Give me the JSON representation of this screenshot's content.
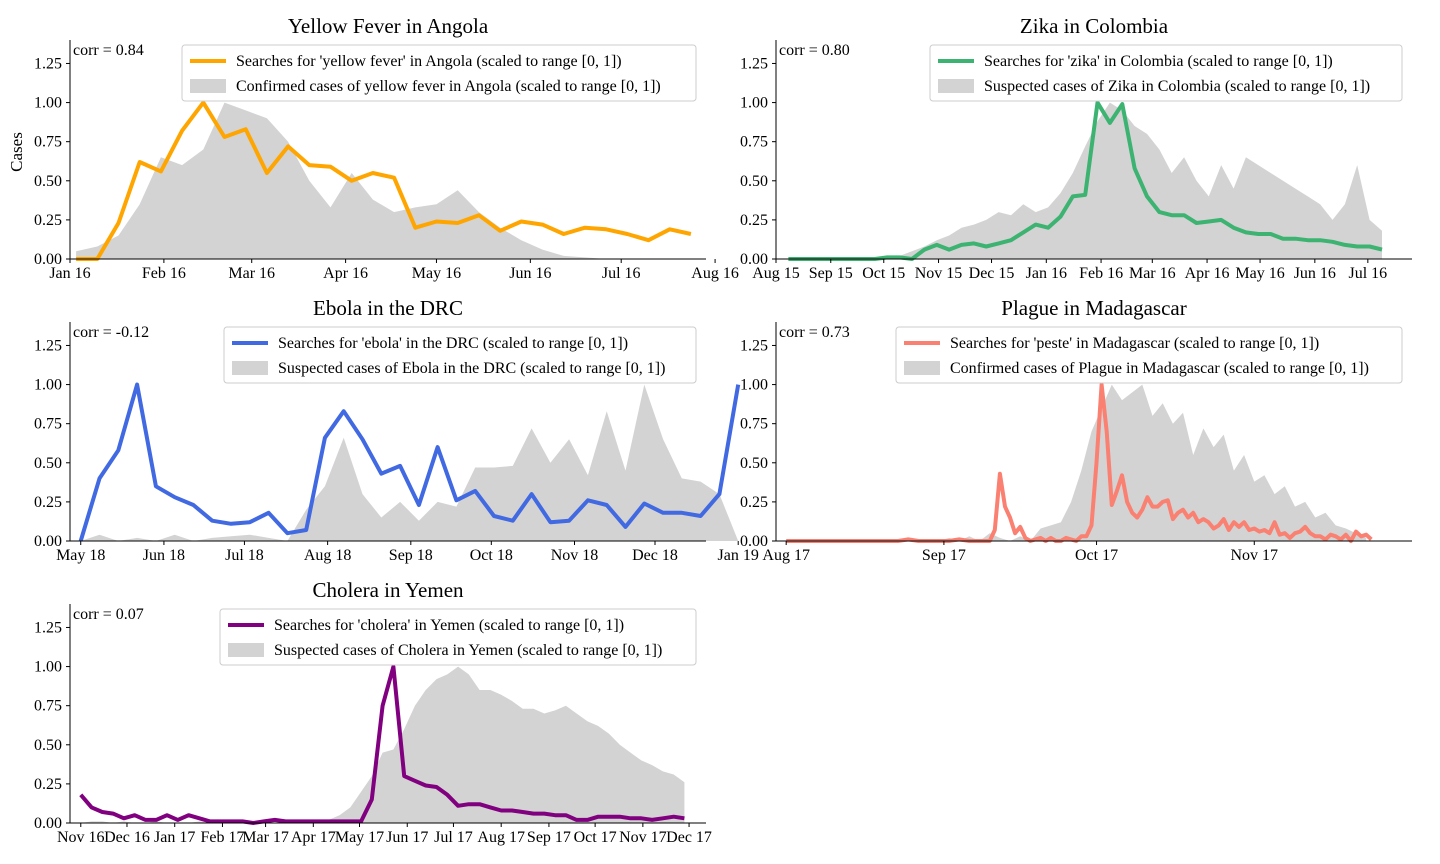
{
  "figure": {
    "ylabel": "Cases"
  },
  "chart_data": [
    {
      "type": "line",
      "title": "Yellow Fever in Angola",
      "corr_label": "corr = 0.84",
      "ylabel": "Cases",
      "ylim": [
        0,
        1.4
      ],
      "yticks": [
        "0.00",
        "0.25",
        "0.50",
        "0.75",
        "1.00",
        "1.25"
      ],
      "xlim": [
        0,
        210
      ],
      "xtick_labels": [
        "Jan 16",
        "Feb 16",
        "Mar 16",
        "Apr 16",
        "May 16",
        "Jun 16",
        "Jul 16",
        "Aug 16"
      ],
      "xtick_pos": [
        0,
        31,
        60,
        91,
        121,
        152,
        182,
        213
      ],
      "legend_position": "top-right",
      "line_color": "#FFA500",
      "search_series": {
        "name": "Searches for 'yellow fever' in Angola (scaled to range [0, 1])",
        "x": [
          2,
          9,
          16,
          23,
          30,
          37,
          44,
          51,
          58,
          65,
          72,
          79,
          86,
          93,
          100,
          107,
          114,
          121,
          128,
          135,
          142,
          149,
          156,
          163,
          170,
          177,
          184,
          191,
          198,
          205
        ],
        "values": [
          0.0,
          0.0,
          0.23,
          0.62,
          0.56,
          0.82,
          1.0,
          0.78,
          0.83,
          0.55,
          0.72,
          0.6,
          0.59,
          0.5,
          0.55,
          0.52,
          0.2,
          0.24,
          0.23,
          0.28,
          0.18,
          0.24,
          0.22,
          0.16,
          0.2,
          0.19,
          0.16,
          0.12,
          0.19,
          0.16
        ]
      },
      "case_series": {
        "name": "Confirmed cases of yellow fever in Angola (scaled to range [0, 1])",
        "x": [
          2,
          9,
          16,
          23,
          30,
          37,
          44,
          51,
          58,
          65,
          72,
          79,
          86,
          93,
          100,
          107,
          114,
          121,
          128,
          135,
          142,
          149,
          156,
          163,
          170,
          177
        ],
        "values": [
          0.05,
          0.08,
          0.15,
          0.35,
          0.65,
          0.6,
          0.7,
          1.0,
          0.95,
          0.9,
          0.75,
          0.5,
          0.33,
          0.55,
          0.38,
          0.3,
          0.33,
          0.35,
          0.44,
          0.3,
          0.2,
          0.12,
          0.06,
          0.02,
          0.01,
          0.0
        ]
      }
    },
    {
      "type": "line",
      "title": "Zika in Colombia",
      "corr_label": "corr = 0.80",
      "ylim": [
        0,
        1.4
      ],
      "yticks": [
        "0.00",
        "0.25",
        "0.50",
        "0.75",
        "1.00",
        "1.25"
      ],
      "xlim": [
        0,
        360
      ],
      "xtick_labels": [
        "Aug 15",
        "Sep 15",
        "Oct 15",
        "Nov 15",
        "Dec 15",
        "Jan 16",
        "Feb 16",
        "Mar 16",
        "Apr 16",
        "May 16",
        "Jun 16",
        "Jul 16"
      ],
      "xtick_pos": [
        0,
        31,
        61,
        92,
        122,
        153,
        184,
        213,
        244,
        274,
        305,
        335
      ],
      "legend_position": "top-right",
      "line_color": "#3CB371",
      "search_series": {
        "name": "Searches for 'zika' in Colombia (scaled to range [0, 1])",
        "x": [
          7,
          14,
          21,
          28,
          35,
          42,
          49,
          56,
          63,
          70,
          77,
          84,
          91,
          98,
          105,
          112,
          119,
          126,
          133,
          140,
          147,
          154,
          161,
          168,
          175,
          182,
          189,
          196,
          203,
          210,
          217,
          224,
          231,
          238,
          245,
          252,
          259,
          266,
          273,
          280,
          287,
          294,
          301,
          308,
          315,
          322,
          329,
          336,
          343
        ],
        "values": [
          0.0,
          0.0,
          0.0,
          0.0,
          0.0,
          0.0,
          0.0,
          0.0,
          0.01,
          0.01,
          0.0,
          0.06,
          0.09,
          0.06,
          0.09,
          0.1,
          0.08,
          0.1,
          0.12,
          0.17,
          0.22,
          0.2,
          0.27,
          0.4,
          0.41,
          1.0,
          0.87,
          0.99,
          0.58,
          0.4,
          0.3,
          0.28,
          0.28,
          0.23,
          0.24,
          0.25,
          0.2,
          0.17,
          0.16,
          0.16,
          0.13,
          0.13,
          0.12,
          0.12,
          0.11,
          0.09,
          0.08,
          0.08,
          0.06
        ]
      },
      "case_series": {
        "name": "Suspected cases of Zika in Colombia (scaled to range [0, 1])",
        "x": [
          63,
          70,
          77,
          84,
          91,
          98,
          105,
          112,
          119,
          126,
          133,
          140,
          147,
          154,
          161,
          168,
          175,
          182,
          189,
          196,
          203,
          210,
          217,
          224,
          231,
          238,
          245,
          252,
          259,
          266,
          273,
          280,
          287,
          294,
          301,
          308,
          315,
          322,
          329,
          336,
          343
        ],
        "values": [
          0.0,
          0.02,
          0.05,
          0.08,
          0.12,
          0.15,
          0.2,
          0.22,
          0.25,
          0.3,
          0.28,
          0.35,
          0.3,
          0.33,
          0.42,
          0.55,
          0.72,
          0.88,
          1.0,
          0.95,
          0.85,
          0.8,
          0.7,
          0.55,
          0.65,
          0.5,
          0.4,
          0.6,
          0.45,
          0.65,
          0.6,
          0.55,
          0.5,
          0.45,
          0.4,
          0.35,
          0.25,
          0.35,
          0.6,
          0.25,
          0.18
        ]
      }
    },
    {
      "type": "line",
      "title": "Ebola in the DRC",
      "corr_label": "corr = -0.12",
      "ylim": [
        0,
        1.4
      ],
      "yticks": [
        "0.00",
        "0.25",
        "0.50",
        "0.75",
        "1.00",
        "1.25"
      ],
      "xlim": [
        -4,
        233
      ],
      "xtick_labels": [
        "May 18",
        "Jun 18",
        "Jul 18",
        "Aug 18",
        "Sep 18",
        "Oct 18",
        "Nov 18",
        "Dec 18",
        "Jan 19"
      ],
      "xtick_pos": [
        0,
        31,
        61,
        92,
        123,
        153,
        184,
        214,
        245
      ],
      "legend_position": "top-right",
      "line_color": "#4169E1",
      "search_series": {
        "name": "Searches for 'ebola' in the DRC (scaled to range [0, 1])",
        "x": [
          0,
          7,
          14,
          21,
          28,
          35,
          42,
          49,
          56,
          63,
          70,
          77,
          84,
          91,
          98,
          105,
          112,
          119,
          126,
          133,
          140,
          147,
          154,
          161,
          168,
          175,
          182,
          189,
          196,
          203,
          210,
          217,
          224,
          231,
          238,
          245
        ],
        "values": [
          0.0,
          0.4,
          0.58,
          1.0,
          0.35,
          0.28,
          0.23,
          0.13,
          0.11,
          0.12,
          0.18,
          0.05,
          0.07,
          0.66,
          0.83,
          0.65,
          0.43,
          0.48,
          0.23,
          0.6,
          0.26,
          0.32,
          0.16,
          0.13,
          0.3,
          0.12,
          0.13,
          0.26,
          0.23,
          0.09,
          0.24,
          0.18,
          0.18,
          0.16,
          0.3,
          1.0
        ]
      },
      "case_series": {
        "name": "Suspected cases of Ebola in the DRC (scaled to range [0, 1])",
        "x": [
          0,
          7,
          14,
          21,
          28,
          35,
          42,
          49,
          56,
          63,
          70,
          77,
          84,
          91,
          98,
          105,
          112,
          119,
          126,
          133,
          140,
          147,
          154,
          161,
          168,
          175,
          182,
          189,
          196,
          203,
          210,
          217,
          224,
          231,
          238,
          245
        ],
        "values": [
          0.0,
          0.04,
          0.0,
          0.02,
          0.0,
          0.04,
          0.0,
          0.02,
          0.03,
          0.04,
          0.02,
          0.0,
          0.2,
          0.35,
          0.66,
          0.3,
          0.15,
          0.25,
          0.13,
          0.25,
          0.22,
          0.47,
          0.47,
          0.48,
          0.72,
          0.5,
          0.65,
          0.42,
          0.83,
          0.45,
          1.0,
          0.65,
          0.4,
          0.38,
          0.3,
          0.0
        ]
      }
    },
    {
      "type": "line",
      "title": "Plague in Madagascar",
      "corr_label": "corr = 0.73",
      "ylim": [
        0,
        1.4
      ],
      "yticks": [
        "0.00",
        "0.25",
        "0.50",
        "0.75",
        "1.00",
        "1.25"
      ],
      "xlim": [
        -2,
        123
      ],
      "xtick_labels": [
        "Aug 17",
        "Sep 17",
        "Oct 17",
        "Nov 17"
      ],
      "xtick_pos": [
        0,
        31,
        61,
        92
      ],
      "legend_position": "top-right",
      "line_color": "#FA8072",
      "search_series": {
        "name": "Searches for 'peste' in Madagascar (scaled to range [0, 1])",
        "x": [
          0,
          2,
          4,
          6,
          8,
          10,
          12,
          14,
          16,
          18,
          20,
          22,
          24,
          26,
          28,
          30,
          32,
          34,
          36,
          38,
          40,
          41,
          42,
          43,
          44,
          45,
          46,
          47,
          48,
          49,
          50,
          51,
          52,
          53,
          54,
          55,
          56,
          57,
          58,
          59,
          60,
          61,
          62,
          63,
          64,
          65,
          66,
          67,
          68,
          69,
          70,
          71,
          72,
          73,
          74,
          75,
          76,
          77,
          78,
          79,
          80,
          81,
          82,
          83,
          84,
          85,
          86,
          87,
          88,
          89,
          90,
          91,
          92,
          93,
          94,
          95,
          96,
          97,
          98,
          99,
          100,
          101,
          102,
          103,
          104,
          105,
          106,
          107,
          108,
          109,
          110,
          111,
          112,
          113,
          114,
          115
        ],
        "values": [
          0.0,
          0.0,
          0.0,
          0.0,
          0.0,
          0.0,
          0.0,
          0.0,
          0.0,
          0.0,
          0.0,
          0.0,
          0.01,
          0.0,
          0.0,
          0.0,
          0.0,
          0.01,
          0.0,
          0.0,
          0.0,
          0.07,
          0.43,
          0.22,
          0.15,
          0.05,
          0.09,
          0.02,
          0.0,
          0.01,
          0.02,
          0.0,
          0.02,
          0.0,
          0.0,
          0.02,
          0.01,
          0.0,
          0.03,
          0.03,
          0.1,
          0.5,
          1.0,
          0.7,
          0.23,
          0.32,
          0.42,
          0.25,
          0.18,
          0.15,
          0.2,
          0.28,
          0.22,
          0.22,
          0.25,
          0.26,
          0.14,
          0.18,
          0.2,
          0.15,
          0.18,
          0.12,
          0.14,
          0.12,
          0.08,
          0.1,
          0.14,
          0.07,
          0.12,
          0.09,
          0.12,
          0.07,
          0.08,
          0.06,
          0.07,
          0.05,
          0.12,
          0.04,
          0.05,
          0.02,
          0.05,
          0.06,
          0.09,
          0.05,
          0.03,
          0.03,
          0.01,
          0.04,
          0.03,
          0.01,
          0.04,
          0.0,
          0.06,
          0.03,
          0.04,
          0.01
        ]
      },
      "case_series": {
        "name": "Confirmed cases of Plague in Madagascar (scaled to range [0, 1])",
        "x": [
          30,
          32,
          34,
          36,
          38,
          40,
          42,
          44,
          46,
          48,
          50,
          52,
          54,
          56,
          58,
          60,
          62,
          64,
          66,
          68,
          70,
          72,
          74,
          76,
          78,
          80,
          82,
          84,
          86,
          88,
          90,
          92,
          94,
          96,
          98,
          100,
          102,
          104,
          106,
          108,
          110,
          112,
          114
        ],
        "values": [
          0.0,
          0.02,
          0.0,
          0.03,
          0.0,
          0.05,
          0.02,
          0.0,
          0.03,
          0.0,
          0.08,
          0.1,
          0.12,
          0.25,
          0.45,
          0.7,
          0.85,
          1.0,
          0.9,
          0.95,
          1.0,
          0.8,
          0.88,
          0.75,
          0.82,
          0.55,
          0.72,
          0.6,
          0.68,
          0.45,
          0.55,
          0.38,
          0.42,
          0.3,
          0.35,
          0.22,
          0.25,
          0.15,
          0.18,
          0.1,
          0.08,
          0.05,
          0.02
        ]
      }
    },
    {
      "type": "line",
      "title": "Cholera in Yemen",
      "corr_label": "corr = 0.07",
      "ylim": [
        0,
        1.4
      ],
      "yticks": [
        "0.00",
        "0.25",
        "0.50",
        "0.75",
        "1.00",
        "1.25"
      ],
      "xlim": [
        -7,
        406
      ],
      "xtick_labels": [
        "Nov 16",
        "Dec 16",
        "Jan 17",
        "Feb 17",
        "Mar 17",
        "Apr 17",
        "May 17",
        "Jun 17",
        "Jul 17",
        "Aug 17",
        "Sep 17",
        "Oct 17",
        "Nov 17",
        "Dec 17"
      ],
      "xtick_pos": [
        0,
        30,
        61,
        92,
        120,
        151,
        181,
        212,
        242,
        273,
        304,
        334,
        365,
        395
      ],
      "legend_position": "top-right",
      "line_color": "#800080",
      "search_series": {
        "name": "Searches for 'cholera' in Yemen (scaled to range [0, 1])",
        "x": [
          0,
          7,
          14,
          21,
          28,
          35,
          42,
          49,
          56,
          63,
          70,
          77,
          84,
          91,
          98,
          105,
          112,
          119,
          126,
          133,
          140,
          147,
          154,
          161,
          168,
          175,
          182,
          189,
          196,
          203,
          210,
          217,
          224,
          231,
          238,
          245,
          252,
          259,
          266,
          273,
          280,
          287,
          294,
          301,
          308,
          315,
          322,
          329,
          336,
          343,
          350,
          357,
          364,
          371,
          378,
          385,
          392
        ],
        "values": [
          0.18,
          0.1,
          0.07,
          0.06,
          0.03,
          0.05,
          0.02,
          0.02,
          0.05,
          0.02,
          0.05,
          0.03,
          0.01,
          0.01,
          0.01,
          0.01,
          0.0,
          0.01,
          0.02,
          0.01,
          0.01,
          0.01,
          0.01,
          0.01,
          0.01,
          0.01,
          0.01,
          0.15,
          0.75,
          1.0,
          0.3,
          0.27,
          0.24,
          0.23,
          0.18,
          0.11,
          0.12,
          0.12,
          0.1,
          0.08,
          0.08,
          0.07,
          0.06,
          0.06,
          0.05,
          0.05,
          0.02,
          0.02,
          0.04,
          0.04,
          0.04,
          0.03,
          0.03,
          0.02,
          0.03,
          0.04,
          0.03
        ]
      },
      "case_series": {
        "name": "Suspected cases of Cholera in Yemen (scaled to range [0, 1])",
        "x": [
          0,
          7,
          14,
          21,
          28,
          35,
          42,
          49,
          56,
          63,
          70,
          77,
          84,
          91,
          98,
          105,
          112,
          119,
          126,
          133,
          140,
          147,
          154,
          161,
          168,
          175,
          182,
          189,
          196,
          203,
          210,
          217,
          224,
          231,
          238,
          245,
          252,
          259,
          266,
          273,
          280,
          287,
          294,
          301,
          308,
          315,
          322,
          329,
          336,
          343,
          350,
          357,
          364,
          371,
          378,
          385,
          392
        ],
        "values": [
          0.0,
          0.01,
          0.01,
          0.0,
          0.01,
          0.0,
          0.0,
          0.01,
          0.0,
          0.0,
          0.0,
          0.01,
          0.0,
          0.0,
          0.0,
          0.0,
          0.0,
          0.0,
          0.0,
          0.0,
          0.0,
          0.0,
          0.0,
          0.02,
          0.05,
          0.1,
          0.2,
          0.3,
          0.45,
          0.47,
          0.6,
          0.75,
          0.85,
          0.92,
          0.95,
          1.0,
          0.95,
          0.85,
          0.85,
          0.82,
          0.78,
          0.73,
          0.73,
          0.7,
          0.72,
          0.75,
          0.7,
          0.65,
          0.62,
          0.57,
          0.5,
          0.45,
          0.4,
          0.37,
          0.33,
          0.31,
          0.26
        ]
      }
    }
  ]
}
